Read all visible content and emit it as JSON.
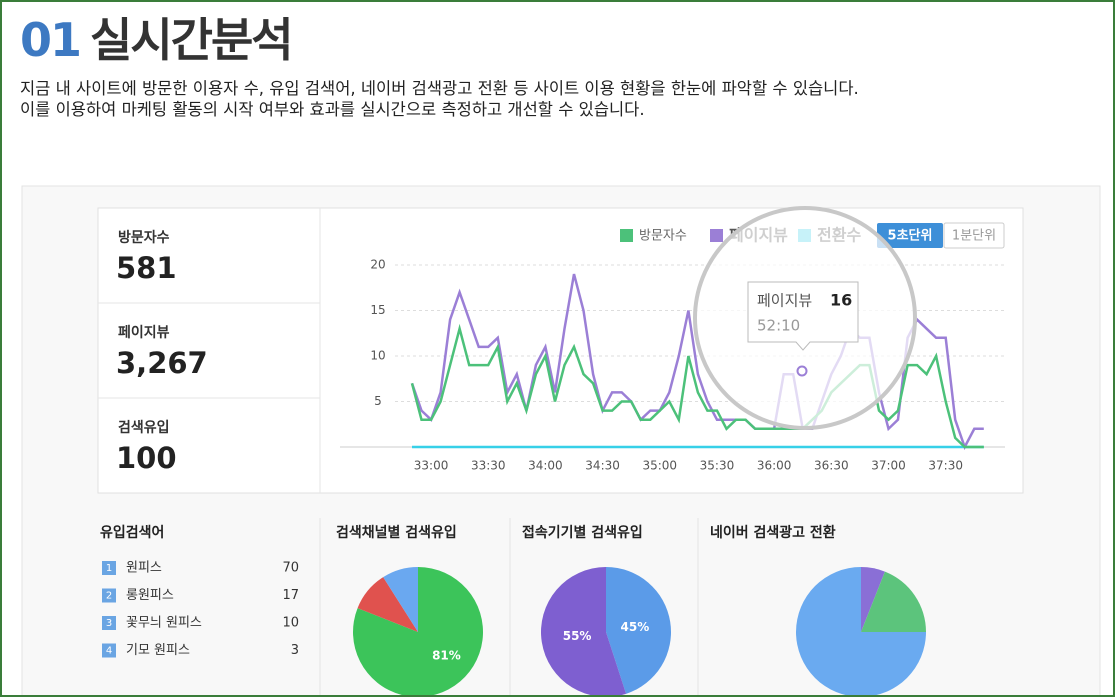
{
  "header": {
    "number": "01",
    "title": "실시간분석"
  },
  "description": [
    "지금 내 사이트에 방문한 이용자 수, 유입 검색어, 네이버 검색광고 전환 등 사이트 이용 현황을 한눈에 파악할 수 있습니다.",
    "이를 이용하여 마케팅 활동의 시작 여부와 효과를 실시간으로 측정하고 개선할 수 있습니다."
  ],
  "stats": [
    {
      "label": "방문자수",
      "value": "581"
    },
    {
      "label": "페이지뷰",
      "value": "3,267"
    },
    {
      "label": "검색유입",
      "value": "100"
    }
  ],
  "buttons": [
    "5초단위",
    "1분단위"
  ],
  "tooltip": {
    "name": "페이지뷰",
    "value": "16",
    "time": "52:10"
  },
  "keywords": {
    "title": "유입검색어",
    "rows": [
      {
        "rank": "1",
        "name": "원피스",
        "count": "70"
      },
      {
        "rank": "2",
        "name": "롱원피스",
        "count": "17"
      },
      {
        "rank": "3",
        "name": "꽃무늬 원피스",
        "count": "10"
      },
      {
        "rank": "4",
        "name": "기모 원피스",
        "count": "3"
      }
    ]
  },
  "chart_data": [
    {
      "type": "line",
      "categories": [
        null,
        null,
        "33:00",
        null,
        null,
        null,
        null,
        null,
        "33:30",
        null,
        null,
        null,
        null,
        null,
        "34:00",
        null,
        null,
        null,
        null,
        null,
        "34:30",
        null,
        null,
        null,
        null,
        null,
        "35:00",
        null,
        null,
        null,
        null,
        null,
        "35:30",
        null,
        null,
        null,
        null,
        null,
        "36:00",
        null,
        null,
        null,
        null,
        null,
        "36:30",
        null,
        null,
        null,
        null,
        null,
        "37:00",
        null,
        null,
        null,
        null,
        null,
        "37:30",
        null,
        null,
        null,
        null
      ],
      "series": [
        {
          "name": "방문자수",
          "color": "#4cc17a",
          "values": [
            7,
            3,
            3,
            5,
            9,
            13,
            9,
            9,
            9,
            11,
            5,
            7,
            4,
            8,
            10,
            5,
            9,
            11,
            8,
            7,
            4,
            4,
            5,
            5,
            3,
            3,
            4,
            5,
            3,
            10,
            6,
            4,
            4,
            2,
            3,
            3,
            2,
            2,
            2,
            2,
            2,
            2,
            3,
            4,
            6,
            7,
            8,
            9,
            9,
            4,
            3,
            4,
            9,
            9,
            8,
            10,
            5,
            1,
            0,
            0,
            0
          ]
        },
        {
          "name": "페이지뷰",
          "color": "#9b7fd6",
          "values": [
            7,
            4,
            3,
            6,
            14,
            17,
            14,
            11,
            11,
            12,
            6,
            8,
            4,
            9,
            11,
            6,
            13,
            19,
            15,
            8,
            4,
            6,
            6,
            5,
            3,
            4,
            4,
            6,
            10,
            15,
            8,
            5,
            3,
            3,
            3,
            3,
            2,
            2,
            2,
            8,
            8,
            2,
            2,
            5,
            8,
            10,
            13,
            12,
            12,
            6,
            2,
            3,
            12,
            14,
            13,
            12,
            12,
            3,
            0,
            2,
            2
          ]
        },
        {
          "name": "전환수",
          "color": "#37d0e8",
          "values": [
            0,
            0,
            0,
            0,
            0,
            0,
            0,
            0,
            0,
            0,
            0,
            0,
            0,
            0,
            0,
            0,
            0,
            0,
            0,
            0,
            0,
            0,
            0,
            0,
            0,
            0,
            0,
            0,
            0,
            0,
            0,
            0,
            0,
            0,
            0,
            0,
            0,
            0,
            0,
            0,
            0,
            0,
            0,
            0,
            0,
            0,
            0,
            0,
            0,
            0,
            0,
            0,
            0,
            0,
            0,
            0,
            0,
            0,
            0,
            0,
            0
          ]
        }
      ],
      "ylim": [
        0,
        20
      ],
      "yticks": [
        5,
        10,
        15,
        20
      ],
      "grid": true
    },
    {
      "type": "pie",
      "title": "검색채널별 검색유입",
      "values": [
        81,
        10,
        9
      ],
      "value_labels": [
        "81%",
        null,
        null
      ],
      "colors": [
        "#3cc45a",
        "#e0524e",
        "#6aa8f0"
      ]
    },
    {
      "type": "pie",
      "title": "접속기기별 검색유입",
      "values": [
        45,
        55
      ],
      "value_labels": [
        "45%",
        "55%"
      ],
      "colors": [
        "#5b9be8",
        "#7e5fd0"
      ]
    },
    {
      "type": "pie",
      "title": "네이버 검색광고 전환",
      "values": [
        6,
        19,
        75
      ],
      "colors": [
        "#8a6fd6",
        "#5cc47c",
        "#6aaaf0"
      ]
    }
  ]
}
